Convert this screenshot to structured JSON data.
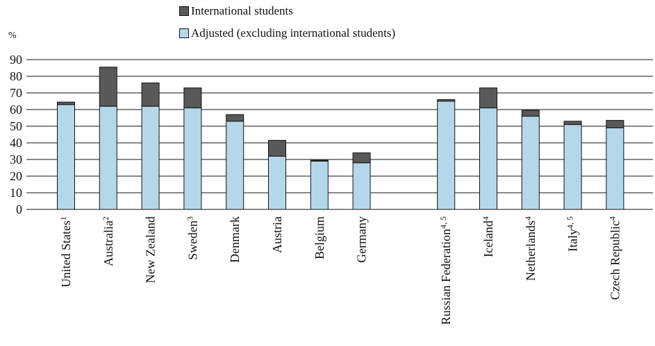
{
  "legend": {
    "international_label": "International students",
    "adjusted_label": "Adjusted (excluding international students)"
  },
  "colors": {
    "international": "#595959",
    "adjusted": "#b4d8ea",
    "outline": "#111111",
    "grid": "#111111"
  },
  "chart_data": {
    "type": "bar",
    "stacked": true,
    "ylabel": "%",
    "ylim": [
      0,
      90
    ],
    "yticks": [
      0,
      10,
      20,
      30,
      40,
      50,
      60,
      70,
      80,
      90
    ],
    "grid": true,
    "legend_position": "top",
    "categories": [
      {
        "label": "United States",
        "sup": "1"
      },
      {
        "label": "Australia",
        "sup": "2"
      },
      {
        "label": "New Zealand",
        "sup": ""
      },
      {
        "label": "Sweden",
        "sup": "3"
      },
      {
        "label": "Denmark",
        "sup": ""
      },
      {
        "label": "Austria",
        "sup": ""
      },
      {
        "label": "Belgium",
        "sup": ""
      },
      {
        "label": "Germany",
        "sup": ""
      },
      {
        "label": "Russian Federation",
        "sup": "4, 5"
      },
      {
        "label": "Iceland",
        "sup": "4"
      },
      {
        "label": "Netherlands",
        "sup": "4"
      },
      {
        "label": "Italy",
        "sup": "4, 5"
      },
      {
        "label": "Czech Republic",
        "sup": "4"
      }
    ],
    "group_break_after": 7,
    "series": [
      {
        "name": "Adjusted (excluding international students)",
        "values": [
          63,
          62,
          62,
          61,
          53,
          32,
          29,
          28,
          65,
          61,
          56,
          51,
          49
        ]
      },
      {
        "name": "International students",
        "values": [
          1.5,
          23.5,
          14,
          12,
          4,
          9.5,
          0.5,
          6,
          1,
          12,
          3.5,
          2,
          4.5
        ]
      }
    ]
  }
}
